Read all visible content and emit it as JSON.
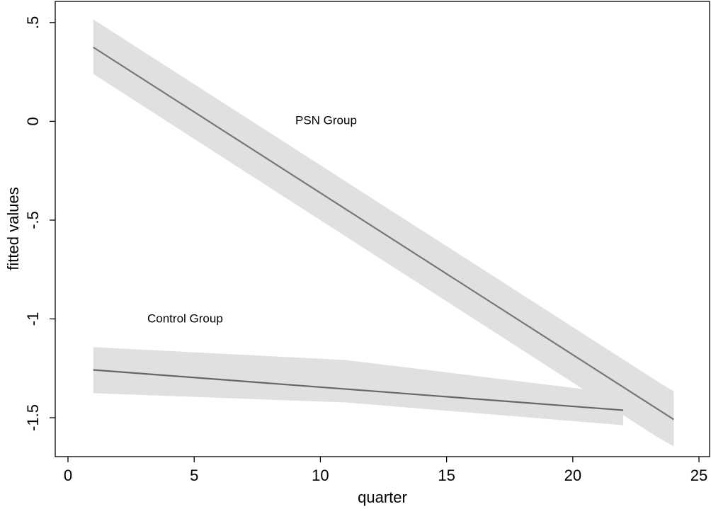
{
  "chart_data": {
    "type": "line",
    "x_label": "quarter",
    "y_label": "fitted values",
    "xlim": [
      -0.505,
      25.42
    ],
    "ylim": [
      -1.697,
      0.607
    ],
    "xticks": [
      0,
      5,
      10,
      15,
      20,
      25
    ],
    "yticks": [
      -1.5,
      -1,
      {
        "value": -0.5,
        "label": "-.5"
      },
      0,
      {
        "value": 0.5,
        "label": ".5"
      }
    ],
    "band_color": "#e0e0e0",
    "series": [
      {
        "name": "PSN Group",
        "color": "#777777",
        "x": [
          1,
          23.4,
          24
        ],
        "values": [
          0.375,
          -1.46,
          -1.509
        ],
        "upper": [
          0.516,
          -1.32,
          -1.366
        ],
        "lower": [
          0.24,
          -1.602,
          -1.645
        ]
      },
      {
        "name": "Control Group",
        "color": "#666666",
        "x": [
          1,
          11,
          22
        ],
        "values": [
          -1.258,
          -1.355,
          -1.462
        ],
        "upper": [
          -1.143,
          -1.208,
          -1.38
        ],
        "lower": [
          -1.376,
          -1.423,
          -1.538
        ]
      }
    ]
  }
}
